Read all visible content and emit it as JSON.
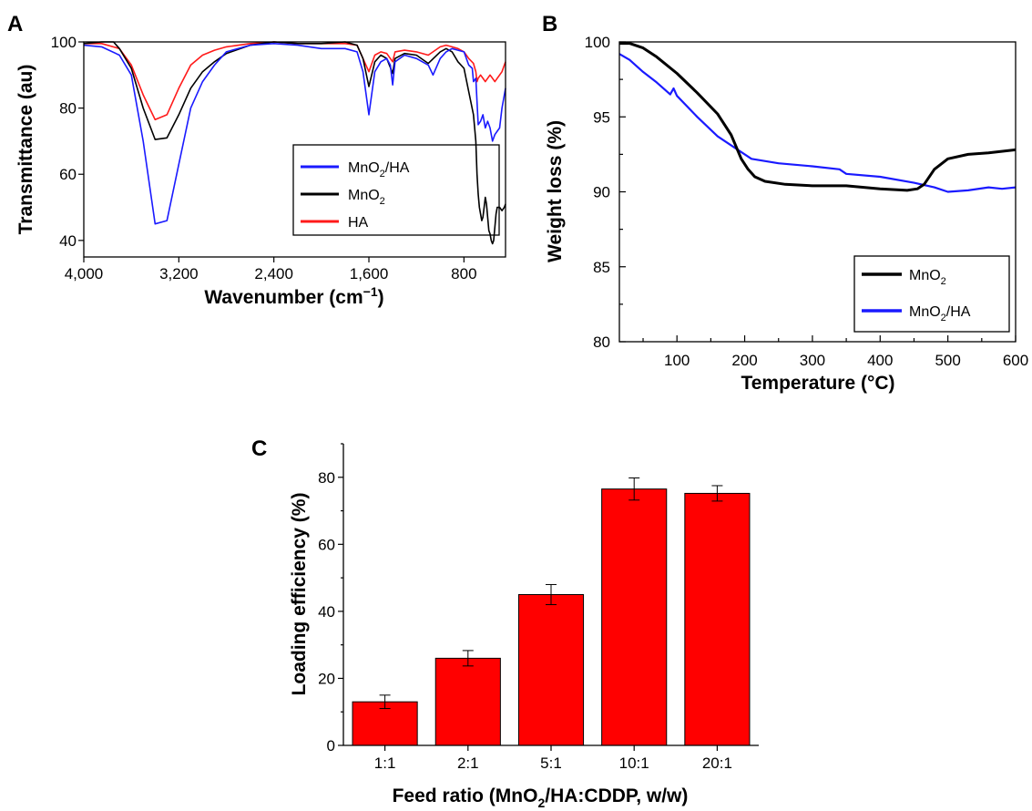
{
  "chart_data": [
    {
      "panel": "A",
      "type": "line",
      "xlabel": "Wavenumber (cm⁻¹)",
      "ylabel": "Transmittance (au)",
      "xlim": [
        4000,
        450
      ],
      "ylim": [
        35,
        100
      ],
      "x_reversed": true,
      "x_ticks": [
        4000,
        3200,
        2400,
        1600,
        800
      ],
      "x_tick_labels": [
        "4,000",
        "3,200",
        "2,400",
        "1,600",
        "800"
      ],
      "y_ticks": [
        40,
        60,
        80,
        100
      ],
      "grid": false,
      "legend_position": "bottom-right",
      "legend": [
        {
          "label": "MnO",
          "sub": "2",
          "suffix": "/HA",
          "color": "#1a1aff"
        },
        {
          "label": "MnO",
          "sub": "2",
          "suffix": "",
          "color": "#000000"
        },
        {
          "label": "HA",
          "sub": "",
          "suffix": "",
          "color": "#ff1a1a"
        }
      ],
      "series": [
        {
          "color": "#1a1aff",
          "x": [
            4000,
            3850,
            3700,
            3600,
            3500,
            3400,
            3300,
            3200,
            3100,
            3000,
            2900,
            2800,
            2600,
            2400,
            2200,
            2000,
            1800,
            1700,
            1650,
            1600,
            1550,
            1500,
            1450,
            1420,
            1400,
            1380,
            1300,
            1200,
            1100,
            1060,
            1000,
            950,
            900,
            850,
            800,
            760,
            730,
            720,
            700,
            690,
            680,
            660,
            640,
            620,
            600,
            580,
            560,
            540,
            520,
            500,
            480,
            460,
            450
          ],
          "y": [
            99,
            98.5,
            96,
            90,
            70,
            45,
            46,
            63,
            80,
            88,
            93,
            97,
            99,
            99.5,
            99,
            98,
            98,
            97,
            91,
            78,
            91,
            94,
            95,
            93,
            87,
            94,
            96,
            95,
            93,
            90,
            95,
            97,
            98,
            97.5,
            97,
            93,
            92,
            88,
            89,
            82,
            75,
            76,
            78,
            74,
            76,
            74,
            70,
            72,
            73,
            74,
            80,
            84,
            86
          ]
        },
        {
          "color": "#000000",
          "x": [
            4000,
            3850,
            3750,
            3700,
            3600,
            3500,
            3400,
            3300,
            3200,
            3100,
            3000,
            2900,
            2800,
            2600,
            2400,
            2200,
            2000,
            1800,
            1700,
            1650,
            1600,
            1550,
            1500,
            1450,
            1400,
            1380,
            1300,
            1200,
            1100,
            1000,
            950,
            900,
            850,
            800,
            760,
            720,
            700,
            690,
            680,
            670,
            660,
            650,
            640,
            630,
            620,
            610,
            600,
            590,
            580,
            570,
            560,
            550,
            540,
            530,
            520,
            500,
            480,
            460,
            450
          ],
          "y": [
            99.5,
            100,
            100,
            98,
            92,
            80,
            70.5,
            71,
            78,
            86,
            91,
            94,
            96.5,
            99,
            100,
            99.5,
            99.5,
            100,
            99,
            95,
            86.5,
            94,
            96,
            95,
            90.5,
            95,
            96.5,
            96,
            93.5,
            97,
            98,
            97,
            94,
            92,
            85,
            78,
            70,
            60,
            54,
            50,
            48,
            46,
            47,
            50,
            53,
            51,
            47,
            43,
            42,
            40,
            39,
            40,
            44,
            48,
            50,
            50,
            49,
            50,
            51
          ]
        },
        {
          "color": "#ff1a1a",
          "x": [
            4000,
            3850,
            3700,
            3600,
            3500,
            3400,
            3300,
            3200,
            3100,
            3000,
            2900,
            2800,
            2600,
            2400,
            2200,
            2000,
            1800,
            1700,
            1650,
            1600,
            1550,
            1500,
            1450,
            1400,
            1380,
            1300,
            1200,
            1100,
            1000,
            950,
            900,
            850,
            800,
            760,
            720,
            700,
            690,
            680,
            660,
            640,
            620,
            600,
            580,
            560,
            540,
            520,
            500,
            480,
            460,
            450
          ],
          "y": [
            99.5,
            99.5,
            98,
            93,
            84,
            76.5,
            78,
            86,
            93,
            96,
            97.5,
            98.5,
            99.5,
            100,
            99.5,
            99.5,
            99.5,
            99,
            95,
            91,
            96,
            97,
            96.5,
            94,
            97,
            97.5,
            97,
            96,
            98.5,
            99,
            98.5,
            98,
            97,
            95,
            93.5,
            91,
            88,
            89,
            90,
            89,
            88,
            89,
            90,
            89,
            88,
            89,
            90,
            91,
            93,
            94
          ]
        }
      ]
    },
    {
      "panel": "B",
      "type": "line",
      "xlabel": "Temperature (°C)",
      "ylabel": "Weight loss (%)",
      "xlim": [
        15,
        600
      ],
      "ylim": [
        80,
        100
      ],
      "x_ticks": [
        100,
        200,
        300,
        400,
        500,
        600
      ],
      "y_ticks": [
        80,
        85,
        90,
        95,
        100
      ],
      "grid": false,
      "legend_position": "bottom-right",
      "legend": [
        {
          "label": "MnO",
          "sub": "2",
          "suffix": "",
          "color": "#000000"
        },
        {
          "label": "MnO",
          "sub": "2",
          "suffix": "/HA",
          "color": "#1a1aff"
        }
      ],
      "series": [
        {
          "color": "#000000",
          "x": [
            15,
            30,
            50,
            70,
            100,
            130,
            160,
            180,
            195,
            205,
            215,
            230,
            260,
            300,
            350,
            400,
            440,
            455,
            465,
            480,
            500,
            530,
            560,
            600
          ],
          "y": [
            99.9,
            99.9,
            99.6,
            99.0,
            97.9,
            96.6,
            95.2,
            93.8,
            92.2,
            91.5,
            91.0,
            90.7,
            90.5,
            90.4,
            90.4,
            90.2,
            90.1,
            90.2,
            90.5,
            91.5,
            92.2,
            92.5,
            92.6,
            92.8
          ]
        },
        {
          "color": "#1a1aff",
          "x": [
            15,
            30,
            50,
            70,
            90,
            95,
            100,
            130,
            160,
            190,
            210,
            250,
            300,
            340,
            350,
            400,
            450,
            480,
            500,
            530,
            560,
            580,
            600
          ],
          "y": [
            99.2,
            98.8,
            98.0,
            97.3,
            96.5,
            96.9,
            96.4,
            95.0,
            93.7,
            92.8,
            92.2,
            91.9,
            91.7,
            91.5,
            91.2,
            91.0,
            90.6,
            90.3,
            90.0,
            90.1,
            90.3,
            90.2,
            90.3
          ]
        }
      ]
    },
    {
      "panel": "C",
      "type": "bar",
      "xlabel": "Feed ratio (MnO₂/HA:CDDP, w/w)",
      "xlabel_parts": {
        "pre": "Feed ratio (MnO",
        "sub": "2",
        "post": "/HA:CDDP, w/w)"
      },
      "ylabel": "Loading efficiency (%)",
      "ylim": [
        0,
        90
      ],
      "y_ticks": [
        0,
        20,
        40,
        60,
        80
      ],
      "categories": [
        "1:1",
        "2:1",
        "5:1",
        "10:1",
        "20:1"
      ],
      "values": [
        13,
        26,
        45,
        76.5,
        75.2
      ],
      "errors": [
        2,
        2.3,
        3,
        3.3,
        2.3
      ],
      "bar_color": "#ff0000",
      "grid": false
    }
  ]
}
